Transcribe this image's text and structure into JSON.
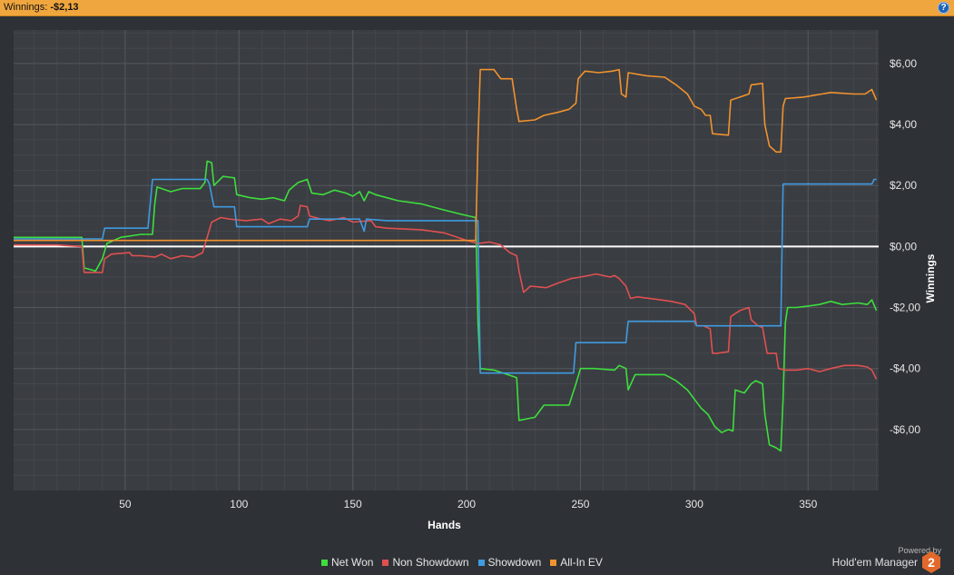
{
  "header": {
    "winnings_label": "Winnings:",
    "winnings_value": "-$2,13",
    "help_label": "?"
  },
  "branding": {
    "powered_by": "Powered by",
    "product": "Hold'em Manager",
    "logo_mark": "2"
  },
  "colors": {
    "background": "#2e3136",
    "plot_background": "#3a3d42",
    "grid": "#54575c",
    "zero_line": "#ffffff",
    "net_won": "#3dde3d",
    "non_showdown": "#e05050",
    "showdown": "#3f9be0",
    "all_in_ev": "#f0922f",
    "header": "#f0a63e",
    "logo": "#e2692b"
  },
  "chart_data": {
    "type": "line",
    "xlabel": "Hands",
    "ylabel": "Winnings",
    "xlim": [
      1,
      381
    ],
    "ylim": [
      -8,
      7.1
    ],
    "x_ticks": [
      50,
      100,
      150,
      200,
      250,
      300,
      350
    ],
    "y_ticks": [
      6,
      4,
      2,
      0,
      -2,
      -4,
      -6
    ],
    "y_tick_labels": [
      "$6,00",
      "$4,00",
      "$2,00",
      "$0,00",
      "-$2,00",
      "-$4,00",
      "-$6,00"
    ],
    "grid": true,
    "legend_position": "bottom-center",
    "series": [
      {
        "name": "Net Won",
        "color": "#3dde3d",
        "points": [
          [
            1,
            0.3
          ],
          [
            31,
            0.3
          ],
          [
            32,
            -0.7
          ],
          [
            37,
            -0.8
          ],
          [
            40,
            -0.4
          ],
          [
            42,
            0.1
          ],
          [
            48,
            0.3
          ],
          [
            57,
            0.4
          ],
          [
            62,
            0.4
          ],
          [
            63,
            1.4
          ],
          [
            64,
            1.95
          ],
          [
            70,
            1.8
          ],
          [
            75,
            1.9
          ],
          [
            83,
            1.9
          ],
          [
            85,
            2.1
          ],
          [
            86,
            2.8
          ],
          [
            88,
            2.75
          ],
          [
            89,
            2.0
          ],
          [
            93,
            2.3
          ],
          [
            98,
            2.25
          ],
          [
            99,
            1.7
          ],
          [
            105,
            1.6
          ],
          [
            110,
            1.55
          ],
          [
            115,
            1.6
          ],
          [
            120,
            1.5
          ],
          [
            122,
            1.85
          ],
          [
            126,
            2.1
          ],
          [
            130,
            2.2
          ],
          [
            132,
            1.75
          ],
          [
            137,
            1.7
          ],
          [
            142,
            1.85
          ],
          [
            147,
            1.75
          ],
          [
            150,
            1.65
          ],
          [
            153,
            1.8
          ],
          [
            155,
            1.5
          ],
          [
            157,
            1.8
          ],
          [
            160,
            1.7
          ],
          [
            165,
            1.6
          ],
          [
            170,
            1.5
          ],
          [
            180,
            1.4
          ],
          [
            190,
            1.2
          ],
          [
            198,
            1.05
          ],
          [
            204,
            0.95
          ],
          [
            205,
            -2.5
          ],
          [
            206,
            -4.0
          ],
          [
            212,
            -4.05
          ],
          [
            218,
            -4.2
          ],
          [
            222,
            -4.3
          ],
          [
            223,
            -5.7
          ],
          [
            230,
            -5.6
          ],
          [
            234,
            -5.2
          ],
          [
            245,
            -5.2
          ],
          [
            248,
            -4.5
          ],
          [
            250,
            -4.0
          ],
          [
            256,
            -4.0
          ],
          [
            265,
            -4.05
          ],
          [
            267,
            -3.9
          ],
          [
            270,
            -4.0
          ],
          [
            271,
            -4.7
          ],
          [
            274,
            -4.2
          ],
          [
            280,
            -4.2
          ],
          [
            287,
            -4.2
          ],
          [
            292,
            -4.4
          ],
          [
            297,
            -4.7
          ],
          [
            300,
            -5.0
          ],
          [
            303,
            -5.3
          ],
          [
            306,
            -5.5
          ],
          [
            309,
            -5.9
          ],
          [
            312,
            -6.1
          ],
          [
            315,
            -6.0
          ],
          [
            317,
            -6.05
          ],
          [
            318,
            -4.7
          ],
          [
            322,
            -4.8
          ],
          [
            325,
            -4.5
          ],
          [
            327,
            -4.4
          ],
          [
            330,
            -4.5
          ],
          [
            331,
            -5.5
          ],
          [
            333,
            -6.5
          ],
          [
            336,
            -6.6
          ],
          [
            338,
            -6.7
          ],
          [
            339,
            -5.0
          ],
          [
            340,
            -2.5
          ],
          [
            341,
            -2.0
          ],
          [
            345,
            -2.0
          ],
          [
            350,
            -1.95
          ],
          [
            355,
            -1.9
          ],
          [
            360,
            -1.8
          ],
          [
            365,
            -1.9
          ],
          [
            372,
            -1.85
          ],
          [
            376,
            -1.9
          ],
          [
            378,
            -1.75
          ],
          [
            380,
            -2.1
          ]
        ]
      },
      {
        "name": "Non Showdown",
        "color": "#e05050",
        "points": [
          [
            1,
            0.05
          ],
          [
            10,
            0.05
          ],
          [
            20,
            0.05
          ],
          [
            31,
            0.0
          ],
          [
            32,
            -0.85
          ],
          [
            40,
            -0.85
          ],
          [
            41,
            -0.4
          ],
          [
            44,
            -0.25
          ],
          [
            52,
            -0.2
          ],
          [
            53,
            -0.3
          ],
          [
            57,
            -0.3
          ],
          [
            63,
            -0.35
          ],
          [
            66,
            -0.25
          ],
          [
            70,
            -0.4
          ],
          [
            75,
            -0.3
          ],
          [
            80,
            -0.35
          ],
          [
            84,
            -0.2
          ],
          [
            86,
            0.3
          ],
          [
            88,
            0.8
          ],
          [
            92,
            0.95
          ],
          [
            96,
            0.9
          ],
          [
            103,
            0.85
          ],
          [
            110,
            0.9
          ],
          [
            113,
            0.75
          ],
          [
            118,
            0.9
          ],
          [
            123,
            0.85
          ],
          [
            126,
            1.0
          ],
          [
            127,
            1.35
          ],
          [
            130,
            1.3
          ],
          [
            131,
            1.0
          ],
          [
            136,
            0.9
          ],
          [
            140,
            0.85
          ],
          [
            146,
            0.95
          ],
          [
            150,
            0.8
          ],
          [
            158,
            0.85
          ],
          [
            160,
            0.65
          ],
          [
            165,
            0.6
          ],
          [
            180,
            0.55
          ],
          [
            190,
            0.45
          ],
          [
            196,
            0.3
          ],
          [
            200,
            0.2
          ],
          [
            205,
            0.1
          ],
          [
            210,
            0.15
          ],
          [
            215,
            0.05
          ],
          [
            219,
            -0.2
          ],
          [
            222,
            -0.3
          ],
          [
            223,
            -0.8
          ],
          [
            225,
            -1.5
          ],
          [
            228,
            -1.3
          ],
          [
            235,
            -1.35
          ],
          [
            240,
            -1.2
          ],
          [
            246,
            -1.05
          ],
          [
            250,
            -1.0
          ],
          [
            257,
            -0.9
          ],
          [
            263,
            -1.0
          ],
          [
            265,
            -0.95
          ],
          [
            267,
            -1.05
          ],
          [
            270,
            -1.3
          ],
          [
            272,
            -1.7
          ],
          [
            275,
            -1.65
          ],
          [
            285,
            -1.75
          ],
          [
            290,
            -1.8
          ],
          [
            296,
            -1.9
          ],
          [
            300,
            -2.2
          ],
          [
            301,
            -2.6
          ],
          [
            304,
            -2.6
          ],
          [
            307,
            -2.7
          ],
          [
            308,
            -3.5
          ],
          [
            310,
            -3.5
          ],
          [
            315,
            -3.45
          ],
          [
            316,
            -2.3
          ],
          [
            320,
            -2.1
          ],
          [
            324,
            -2.0
          ],
          [
            325,
            -2.4
          ],
          [
            328,
            -2.6
          ],
          [
            330,
            -2.65
          ],
          [
            332,
            -3.5
          ],
          [
            336,
            -3.5
          ],
          [
            337,
            -4.0
          ],
          [
            340,
            -4.05
          ],
          [
            345,
            -4.05
          ],
          [
            350,
            -4.0
          ],
          [
            355,
            -4.1
          ],
          [
            360,
            -4.0
          ],
          [
            366,
            -3.9
          ],
          [
            372,
            -3.9
          ],
          [
            376,
            -3.95
          ],
          [
            378,
            -4.05
          ],
          [
            380,
            -4.35
          ]
        ]
      },
      {
        "name": "Showdown",
        "color": "#3f9be0",
        "points": [
          [
            1,
            0.25
          ],
          [
            40,
            0.25
          ],
          [
            41,
            0.6
          ],
          [
            60,
            0.6
          ],
          [
            61,
            1.4
          ],
          [
            62,
            2.2
          ],
          [
            86,
            2.2
          ],
          [
            87,
            2.05
          ],
          [
            89,
            1.3
          ],
          [
            98,
            1.3
          ],
          [
            99,
            0.65
          ],
          [
            130,
            0.65
          ],
          [
            131,
            0.9
          ],
          [
            153,
            0.9
          ],
          [
            155,
            0.5
          ],
          [
            156,
            0.9
          ],
          [
            165,
            0.85
          ],
          [
            205,
            0.85
          ],
          [
            206,
            -4.15
          ],
          [
            247,
            -4.15
          ],
          [
            248,
            -3.15
          ],
          [
            270,
            -3.15
          ],
          [
            271,
            -2.45
          ],
          [
            300,
            -2.45
          ],
          [
            301,
            -2.6
          ],
          [
            338,
            -2.6
          ],
          [
            339,
            2.05
          ],
          [
            378,
            2.05
          ],
          [
            379,
            2.2
          ],
          [
            380,
            2.2
          ]
        ]
      },
      {
        "name": "All-In EV",
        "color": "#f0922f",
        "points": [
          [
            1,
            0.2
          ],
          [
            204,
            0.2
          ],
          [
            205,
            3.5
          ],
          [
            206,
            5.8
          ],
          [
            212,
            5.8
          ],
          [
            215,
            5.5
          ],
          [
            220,
            5.5
          ],
          [
            222,
            4.5
          ],
          [
            223,
            4.1
          ],
          [
            230,
            4.15
          ],
          [
            234,
            4.3
          ],
          [
            240,
            4.4
          ],
          [
            245,
            4.5
          ],
          [
            248,
            4.7
          ],
          [
            249,
            5.5
          ],
          [
            252,
            5.75
          ],
          [
            258,
            5.7
          ],
          [
            264,
            5.75
          ],
          [
            267,
            5.8
          ],
          [
            268,
            5.0
          ],
          [
            270,
            4.9
          ],
          [
            271,
            5.7
          ],
          [
            279,
            5.6
          ],
          [
            287,
            5.55
          ],
          [
            292,
            5.3
          ],
          [
            297,
            5.0
          ],
          [
            300,
            4.6
          ],
          [
            303,
            4.5
          ],
          [
            305,
            4.3
          ],
          [
            307,
            4.3
          ],
          [
            308,
            3.7
          ],
          [
            315,
            3.65
          ],
          [
            316,
            4.8
          ],
          [
            320,
            4.9
          ],
          [
            324,
            5.0
          ],
          [
            325,
            5.3
          ],
          [
            330,
            5.35
          ],
          [
            331,
            4.0
          ],
          [
            333,
            3.3
          ],
          [
            336,
            3.1
          ],
          [
            338,
            3.1
          ],
          [
            339,
            4.6
          ],
          [
            340,
            4.85
          ],
          [
            348,
            4.9
          ],
          [
            352,
            4.95
          ],
          [
            356,
            5.0
          ],
          [
            360,
            5.05
          ],
          [
            370,
            5.0
          ],
          [
            375,
            5.0
          ],
          [
            378,
            5.15
          ],
          [
            380,
            4.8
          ]
        ]
      }
    ]
  }
}
